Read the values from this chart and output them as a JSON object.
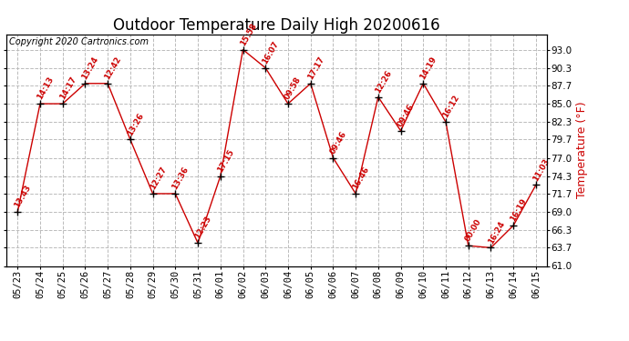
{
  "title": "Outdoor Temperature Daily High 20200616",
  "ylabel": "Temperature (°F)",
  "copyright": "Copyright 2020 Cartronics.com",
  "background_color": "#ffffff",
  "line_color": "#cc0000",
  "marker_color": "#000000",
  "grid_color": "#bbbbbb",
  "dates": [
    "05/23",
    "05/24",
    "05/25",
    "05/26",
    "05/27",
    "05/28",
    "05/29",
    "05/30",
    "05/31",
    "06/01",
    "06/02",
    "06/03",
    "06/04",
    "06/05",
    "06/06",
    "06/07",
    "06/08",
    "06/09",
    "06/10",
    "06/11",
    "06/12",
    "06/13",
    "06/14",
    "06/15"
  ],
  "values": [
    69.0,
    85.0,
    85.0,
    88.0,
    88.0,
    79.7,
    71.7,
    71.7,
    64.4,
    74.3,
    93.0,
    90.3,
    85.0,
    88.0,
    77.0,
    71.7,
    86.0,
    81.0,
    88.0,
    82.3,
    64.0,
    63.7,
    67.0,
    73.0
  ],
  "times": [
    "13:43",
    "14:13",
    "14:17",
    "13:24",
    "12:42",
    "13:26",
    "12:27",
    "13:36",
    "12:23",
    "17:15",
    "15:58",
    "16:07",
    "09:58",
    "17:17",
    "09:46",
    "16:46",
    "12:26",
    "09:46",
    "14:19",
    "16:12",
    "00:00",
    "16:24",
    "16:19",
    "11:03"
  ],
  "ylim": [
    61.0,
    95.3
  ],
  "yticks": [
    61.0,
    63.7,
    66.3,
    69.0,
    71.7,
    74.3,
    77.0,
    79.7,
    82.3,
    85.0,
    87.7,
    90.3,
    93.0
  ],
  "title_fontsize": 12,
  "ylabel_fontsize": 9,
  "tick_fontsize": 7.5,
  "annot_fontsize": 6.2,
  "annot_rotation": 60,
  "copyright_fontsize": 7
}
